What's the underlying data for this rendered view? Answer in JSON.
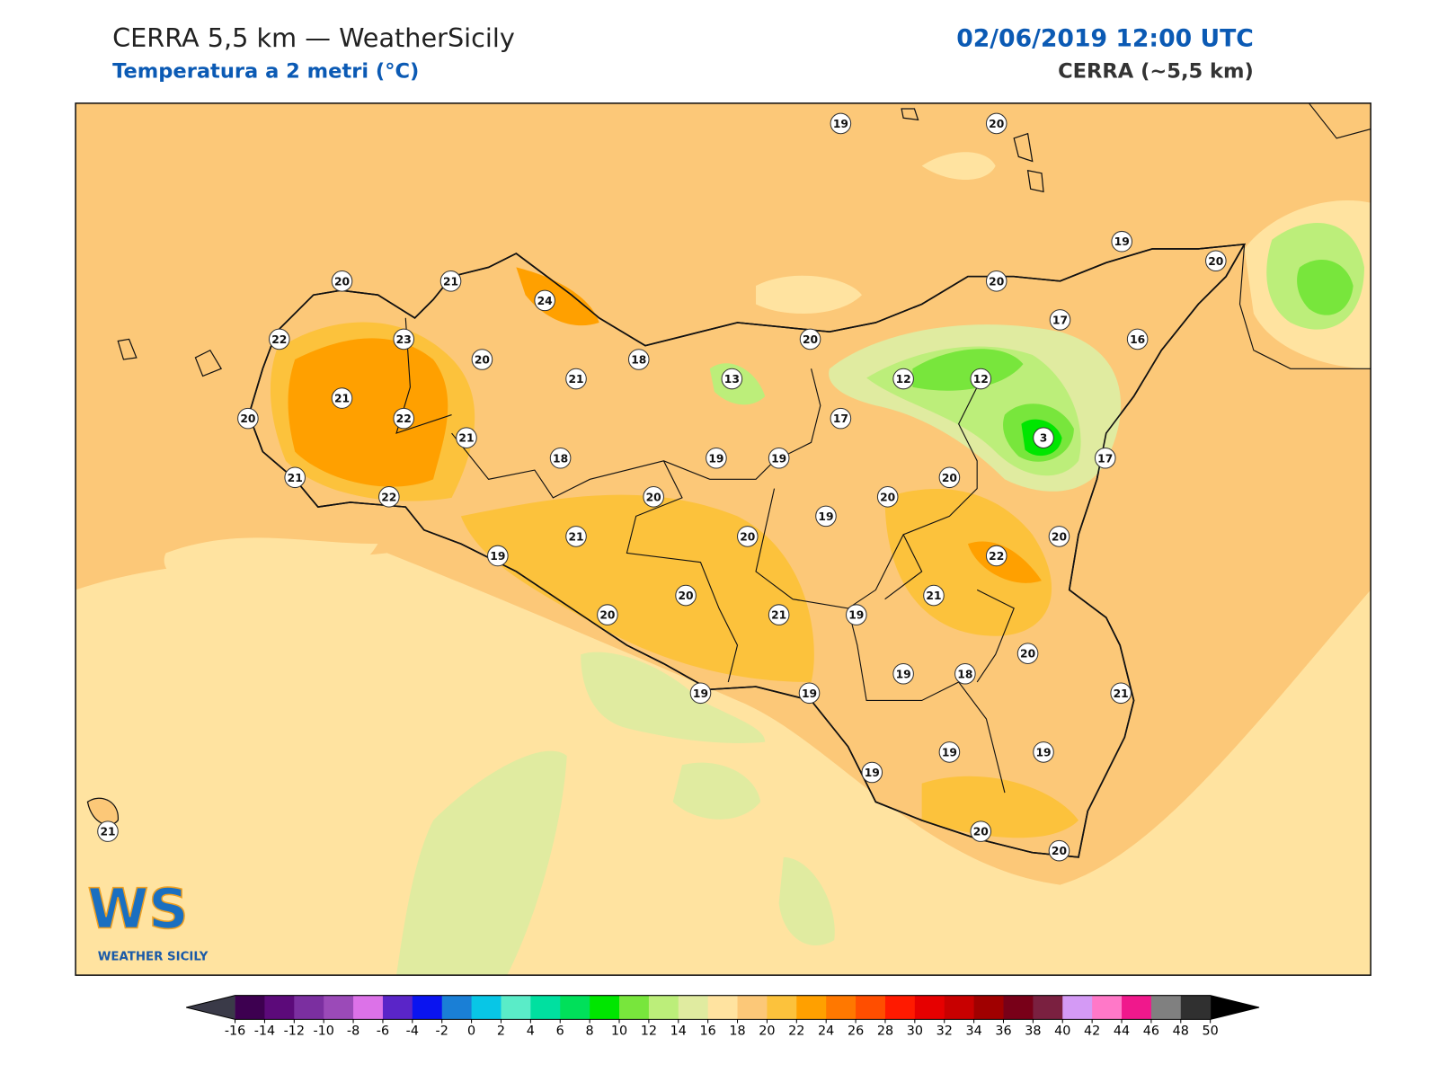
{
  "header": {
    "title": "CERRA 5,5 km — WeatherSicily",
    "subtitle": "Temperatura a 2 metri (°C)",
    "date": "02/06/2019 12:00 UTC",
    "model": "CERRA (~5,5 km)"
  },
  "stations": [
    19,
    20,
    19,
    20,
    20,
    21,
    24,
    20,
    17,
    16,
    22,
    23,
    20,
    18,
    20,
    21,
    13,
    12,
    12,
    21,
    20,
    22,
    17,
    21,
    3,
    18,
    19,
    19,
    17,
    21,
    22,
    20,
    20,
    20,
    19,
    21,
    20,
    20,
    19,
    22,
    20,
    21,
    20,
    21,
    19,
    20,
    19,
    18,
    21,
    19,
    19,
    19,
    19,
    19,
    20,
    20,
    21
  ],
  "colorbar": {
    "ticks": [
      -16,
      -14,
      -12,
      -10,
      -8,
      -6,
      -4,
      -2,
      0,
      2,
      4,
      6,
      8,
      10,
      12,
      14,
      16,
      18,
      20,
      22,
      24,
      26,
      28,
      30,
      32,
      34,
      36,
      38,
      40,
      42,
      44,
      46,
      48,
      50
    ],
    "colors": [
      "#3d0050",
      "#5c0a7a",
      "#7b2fa0",
      "#9b4ab8",
      "#dc72e8",
      "#5a25c8",
      "#0a14f0",
      "#1a7fd6",
      "#08c6e6",
      "#5aecc8",
      "#00e0a0",
      "#00e05a",
      "#00e600",
      "#78e63c",
      "#bcee7a",
      "#e0eba0",
      "#ffe3a0",
      "#fcc878",
      "#fcc23c",
      "#ffa000",
      "#ff7800",
      "#ff4e00",
      "#ff1a00",
      "#e60000",
      "#c80000",
      "#a00000",
      "#780018",
      "#7a2040",
      "#d49af5",
      "#ff78c8",
      "#f0188c",
      "#808080",
      "#303030"
    ],
    "under_color": "#3a3a48",
    "over_color": "#000000"
  },
  "logo": {
    "mark": "WS",
    "text": "WEATHER SICILY"
  }
}
